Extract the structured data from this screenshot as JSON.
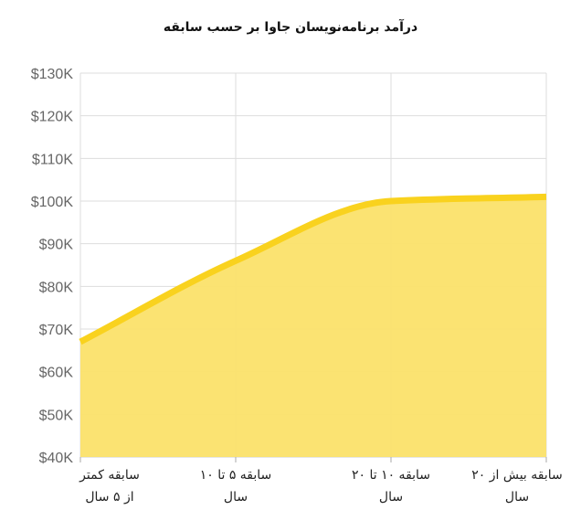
{
  "chart_data": {
    "type": "area",
    "title": "درآمد برنامه‌نویسان جاوا بر حسب سابقه",
    "xlabel": "",
    "ylabel": "",
    "categories": [
      [
        "سابقه کمتر",
        "از ۵ سال"
      ],
      [
        "سابقه ۵ تا ۱۰",
        "سال"
      ],
      [
        "سابقه ۱۰  تا ۲۰",
        "سال"
      ],
      [
        "سابقه بیش از ۲۰",
        "سال"
      ]
    ],
    "series": [
      {
        "values": [
          67000,
          86000,
          100000,
          101000
        ]
      }
    ],
    "ylim": [
      40000,
      130000
    ],
    "yticks": [
      "$40K",
      "$50K",
      "$60K",
      "$70K",
      "$80K",
      "$90K",
      "$100K",
      "$110K",
      "$120K",
      "$130K"
    ],
    "grid": true,
    "legend": "none",
    "line_color": "#f9d21e",
    "fill_color": "#fbe16a"
  }
}
